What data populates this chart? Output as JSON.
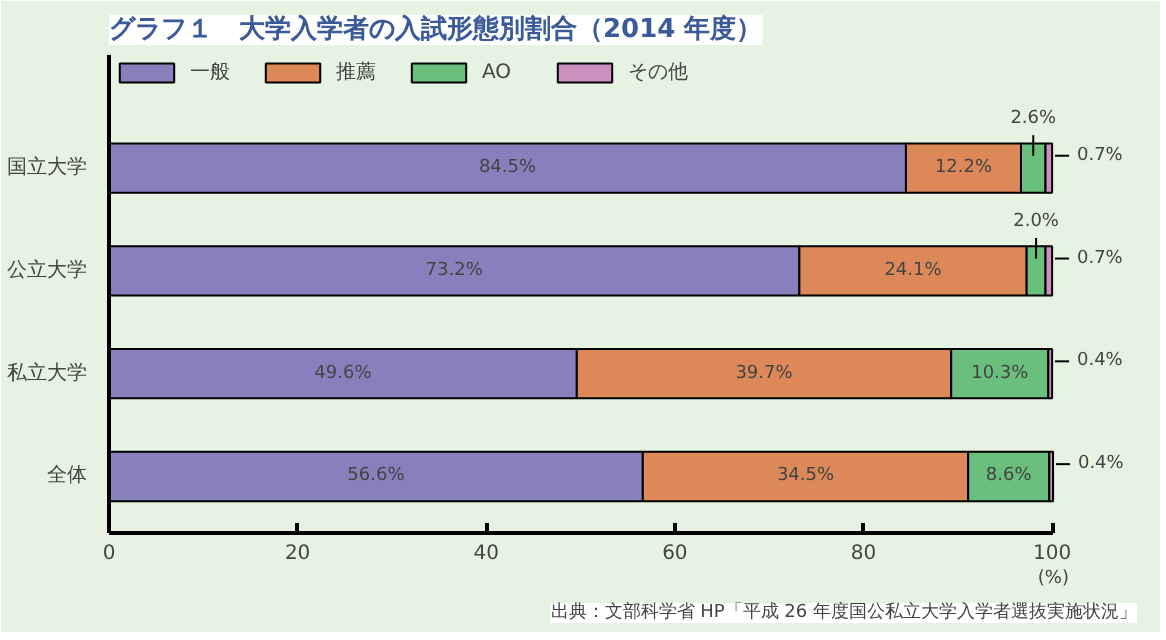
{
  "chart_data": {
    "type": "bar",
    "orientation": "horizontal",
    "stacked": true,
    "title": "グラフ１　大学入学者の入試形態別割合（2014 年度）",
    "categories": [
      "国立大学",
      "公立大学",
      "私立大学",
      "全体"
    ],
    "series": [
      {
        "name": "一般",
        "color": "#8880bc",
        "values": [
          84.5,
          73.2,
          49.6,
          56.6
        ],
        "value_labels": [
          "84.5%",
          "73.2%",
          "49.6%",
          "56.6%"
        ]
      },
      {
        "name": "推薦",
        "color": "#dc8859",
        "values": [
          12.2,
          24.1,
          39.7,
          34.5
        ],
        "value_labels": [
          "12.2%",
          "24.1%",
          "39.7%",
          "34.5%"
        ]
      },
      {
        "name": "AO",
        "color": "#6abf7c",
        "values": [
          2.6,
          2.0,
          10.3,
          8.6
        ],
        "value_labels": [
          "2.6%",
          "2.0%",
          "10.3%",
          "8.6%"
        ]
      },
      {
        "name": "その他",
        "color": "#cc90c0",
        "values": [
          0.7,
          0.7,
          0.4,
          0.4
        ],
        "value_labels": [
          "0.7%",
          "0.7%",
          "0.4%",
          "0.4%"
        ]
      }
    ],
    "xlim": [
      0,
      100
    ],
    "xticks": [
      0,
      20,
      40,
      60,
      80,
      100
    ],
    "xlabel": "(%)",
    "legend": "top",
    "grid": false,
    "annotations": [
      "出典：文部科学省 HP「平成 26 年度国公私立大学入学者選抜実施状況」"
    ]
  }
}
